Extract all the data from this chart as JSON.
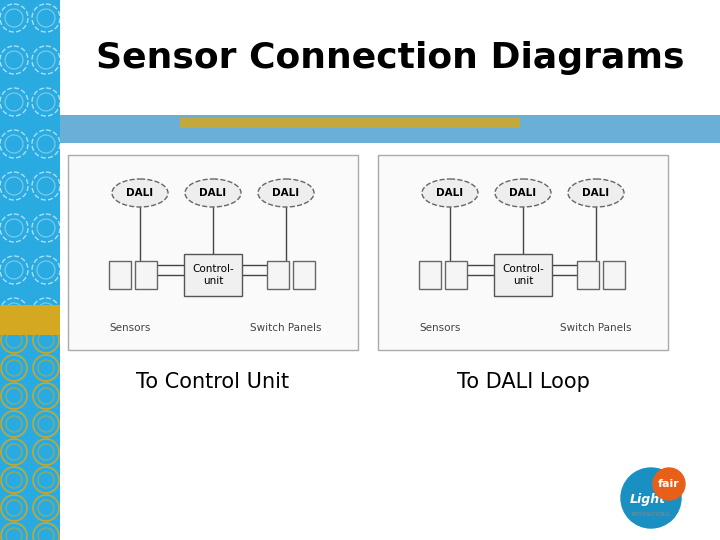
{
  "title": "Sensor Connection Diagrams",
  "title_fontsize": 26,
  "title_color": "#000000",
  "background_color": "#ffffff",
  "left_panel_label": "To Control Unit",
  "right_panel_label": "To DALI Loop",
  "label_fontsize": 15,
  "header_bar_blue": "#6aafd6",
  "header_bar_gold": "#d4a820",
  "left_strip_blue": "#29abe2",
  "left_strip_gold": "#d4a820",
  "panel_border_color": "#aaaaaa",
  "dali_ellipse_fc": "#eeeeee",
  "dali_ellipse_ec": "#666666",
  "control_unit_fc": "#f0f0f0",
  "control_unit_ec": "#555555",
  "small_box_fc": "#f5f5f5",
  "small_box_ec": "#666666",
  "line_color": "#444444",
  "logo_blue": "#1a8fc1",
  "logo_orange": "#e86018"
}
